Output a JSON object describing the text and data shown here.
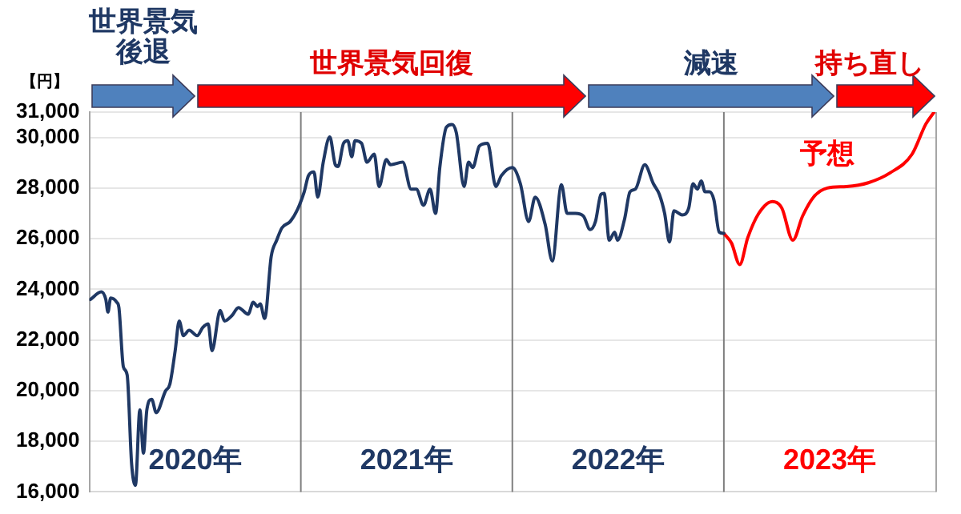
{
  "chart_data": {
    "type": "line",
    "ylabel": "【円】",
    "xlim": [
      2020,
      2024
    ],
    "xticks": [
      {
        "value": 2020.5,
        "label": "2020年"
      },
      {
        "value": 2021.5,
        "label": "2021年"
      },
      {
        "value": 2022.5,
        "label": "2022年"
      },
      {
        "value": 2023.5,
        "label": "2023年"
      }
    ],
    "ylim": [
      16000,
      31000
    ],
    "yticks": [
      {
        "value": 16000,
        "label": "16,000"
      },
      {
        "value": 18000,
        "label": "18,000"
      },
      {
        "value": 20000,
        "label": "20,000"
      },
      {
        "value": 22000,
        "label": "22,000"
      },
      {
        "value": 24000,
        "label": "24,000"
      },
      {
        "value": 26000,
        "label": "26,000"
      },
      {
        "value": 28000,
        "label": "28,000"
      },
      {
        "value": 30000,
        "label": "30,000"
      },
      {
        "value": 31000,
        "label": "31,000"
      }
    ],
    "grid": "y",
    "legend": false,
    "ref_lines": [
      {
        "axis": "x",
        "value": 2021,
        "color": "#7f7f7f"
      },
      {
        "axis": "x",
        "value": 2022,
        "color": "#7f7f7f"
      },
      {
        "axis": "x",
        "value": 2023,
        "color": "#7f7f7f"
      }
    ],
    "annotations": [
      "世界景気後退",
      "世界景気回復",
      "減速",
      "持ち直し"
    ],
    "series": [
      {
        "color": "#1f3864",
        "x": [
          2020.005,
          2020.057,
          2020.078,
          2020.088,
          2020.101,
          2020.13,
          2020.14,
          2020.161,
          2020.179,
          2020.2,
          2020.218,
          2020.239,
          2020.256,
          2020.272,
          2020.295,
          2020.316,
          2020.36,
          2020.381,
          2020.406,
          2020.425,
          2020.445,
          2020.472,
          2020.51,
          2020.536,
          2020.562,
          2020.58,
          2020.619,
          2020.639,
          2020.674,
          2020.705,
          2020.751,
          2020.775,
          2020.795,
          2020.808,
          2020.829,
          2020.86,
          2020.886,
          2020.911,
          2020.95,
          2020.984,
          2021.016,
          2021.036,
          2021.062,
          2021.08,
          2021.106,
          2021.137,
          2021.163,
          2021.176,
          2021.202,
          2021.222,
          2021.241,
          2021.256,
          2021.287,
          2021.313,
          2021.347,
          2021.37,
          2021.404,
          2021.424,
          2021.482,
          2021.521,
          2021.546,
          2021.58,
          2021.611,
          2021.637,
          2021.657,
          2021.688,
          2021.715,
          2021.735,
          2021.772,
          2021.793,
          2021.813,
          2021.844,
          2021.883,
          2021.922,
          2021.948,
          2022.0,
          2022.038,
          2022.077,
          2022.108,
          2022.155,
          2022.189,
          2022.232,
          2022.259,
          2022.298,
          2022.336,
          2022.368,
          2022.393,
          2022.419,
          2022.434,
          2022.458,
          2022.484,
          2022.497,
          2022.531,
          2022.556,
          2022.582,
          2022.626,
          2022.667,
          2022.695,
          2022.72,
          2022.743,
          2022.764,
          2022.803,
          2022.834,
          2022.854,
          2022.875,
          2022.893,
          2022.911,
          2022.932,
          2022.953,
          2022.978,
          2023.0
        ],
        "values": [
          23600,
          23900,
          23600,
          23100,
          23660,
          23490,
          23280,
          20940,
          20620,
          17110,
          16260,
          19240,
          17530,
          19240,
          19660,
          19130,
          19980,
          20260,
          21580,
          22750,
          22170,
          22380,
          22170,
          22490,
          22640,
          21580,
          23170,
          22750,
          22960,
          23280,
          23020,
          23490,
          23320,
          23430,
          22850,
          25300,
          25940,
          26430,
          26680,
          27150,
          27850,
          28490,
          28640,
          27640,
          29020,
          30020,
          28920,
          28850,
          29770,
          29870,
          29240,
          29870,
          29770,
          29020,
          29340,
          28060,
          29130,
          28920,
          29020,
          27960,
          27960,
          27320,
          27960,
          27000,
          28810,
          30400,
          30510,
          30190,
          28060,
          29020,
          28810,
          29660,
          29770,
          28060,
          28490,
          28810,
          28170,
          26680,
          27640,
          26570,
          25120,
          28130,
          27000,
          27000,
          26890,
          26360,
          26680,
          27750,
          27790,
          25940,
          26260,
          25940,
          26790,
          27850,
          27960,
          28920,
          28170,
          27750,
          27000,
          25870,
          27100,
          26940,
          27210,
          28170,
          27960,
          28280,
          27850,
          27850,
          27530,
          26260,
          26210
        ]
      },
      {
        "name": "予想",
        "color": "#ff0000",
        "x": [
          2023.0,
          2023.036,
          2023.075,
          2023.113,
          2023.165,
          2023.23,
          2023.274,
          2023.326,
          2023.372,
          2023.424,
          2023.489,
          2023.58,
          2023.683,
          2023.786,
          2023.89,
          2023.955,
          2023.994
        ],
        "values": [
          26210,
          25830,
          24980,
          26040,
          27000,
          27470,
          27210,
          25940,
          26890,
          27640,
          28000,
          28060,
          28210,
          28600,
          29340,
          30530,
          31000
        ]
      }
    ]
  }
}
